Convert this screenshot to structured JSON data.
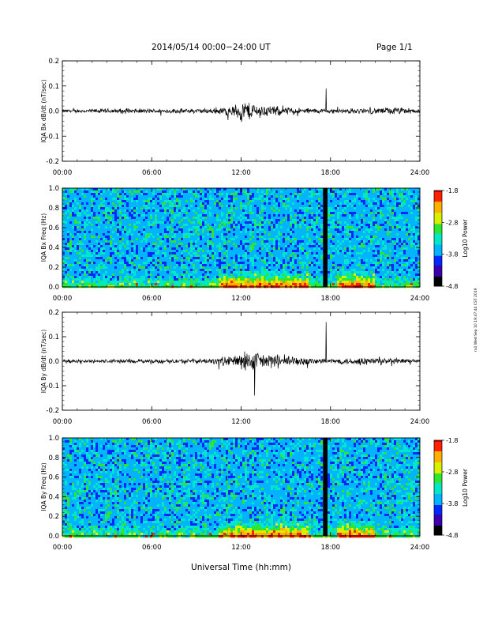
{
  "header": {
    "title": "2014/05/14  00:00−24:00 UT",
    "page": "Page 1/1"
  },
  "stamp": "ra1 Wed Sep 10 19:47:44 CST 2019",
  "colors": {
    "trace": "#000000",
    "colormap": [
      "#000000",
      "#3a00b0",
      "#0028ff",
      "#00b4ff",
      "#00e8c8",
      "#2ee62e",
      "#d8f000",
      "#ffb000",
      "#ff2000",
      "#c00000"
    ]
  },
  "chart_data": [
    {
      "type": "line",
      "panel": "bx-dbdt",
      "ylabel": "IQA Bx dB/dt (nT/sec)",
      "ylim": [
        -0.2,
        0.2
      ],
      "yticks": [
        "0.2",
        "0.1",
        "0.0",
        "-0.1",
        "-0.2"
      ],
      "xlim": [
        0,
        24
      ],
      "xticks": [
        "00:00",
        "06:00",
        "12:00",
        "18:00",
        "24:00"
      ],
      "noise_envelope": {
        "hours": [
          0,
          4,
          6,
          10,
          11.5,
          12,
          12.5,
          13,
          14,
          15,
          16,
          17,
          18,
          19,
          20,
          21,
          22,
          23,
          24
        ],
        "amp": [
          0.008,
          0.012,
          0.01,
          0.012,
          0.025,
          0.055,
          0.045,
          0.035,
          0.025,
          0.02,
          0.015,
          0.012,
          0.01,
          0.012,
          0.013,
          0.013,
          0.018,
          0.015,
          0.01
        ]
      },
      "spikes": [
        {
          "hour": 17.7,
          "value": 0.09
        }
      ]
    },
    {
      "type": "heatmap",
      "panel": "bx-spectrogram",
      "ylabel": "IQA Bx Freq (Hz)",
      "ylim": [
        0,
        1.0
      ],
      "yticks": [
        "1.0",
        "0.8",
        "0.6",
        "0.4",
        "0.2",
        "0.0"
      ],
      "xlim": [
        0,
        24
      ],
      "xticks": [
        "00:00",
        "06:00",
        "12:00",
        "18:00",
        "24:00"
      ],
      "colorbar": {
        "label": "Log10 Power",
        "range": [
          -4.8,
          -1.8
        ],
        "ticks": [
          "-1.8",
          "-2.8",
          "-3.8",
          "-4.8"
        ]
      },
      "gaps_hours": [
        [
          17.5,
          17.8
        ]
      ],
      "low_freq_enhancement_hours": [
        [
          10.5,
          16.5
        ],
        [
          18.5,
          21
        ]
      ]
    },
    {
      "type": "line",
      "panel": "by-dbdt",
      "ylabel": "IQA By dB/dt (nT/sec)",
      "ylim": [
        -0.2,
        0.2
      ],
      "yticks": [
        "0.2",
        "0.1",
        "0.0",
        "-0.1",
        "-0.2"
      ],
      "xlim": [
        0,
        24
      ],
      "xticks": [
        "00:00",
        "06:00",
        "12:00",
        "18:00",
        "24:00"
      ],
      "noise_envelope": {
        "hours": [
          0,
          4,
          6,
          10,
          11.5,
          12,
          12.5,
          13,
          14,
          15,
          16,
          17,
          18,
          19,
          20,
          21,
          22,
          23,
          24
        ],
        "amp": [
          0.008,
          0.01,
          0.009,
          0.012,
          0.03,
          0.04,
          0.05,
          0.045,
          0.035,
          0.03,
          0.02,
          0.015,
          0.012,
          0.015,
          0.018,
          0.02,
          0.015,
          0.012,
          0.01
        ]
      },
      "spikes": [
        {
          "hour": 17.7,
          "value": 0.16
        },
        {
          "hour": 12.9,
          "value": -0.14
        }
      ]
    },
    {
      "type": "heatmap",
      "panel": "by-spectrogram",
      "ylabel": "IQA By Freq (Hz)",
      "ylim": [
        0,
        1.0
      ],
      "yticks": [
        "1.0",
        "0.8",
        "0.6",
        "0.4",
        "0.2",
        "0.0"
      ],
      "xlim": [
        0,
        24
      ],
      "xticks": [
        "00:00",
        "06:00",
        "12:00",
        "18:00",
        "24:00"
      ],
      "xlabel": "Universal Time (hh:mm)",
      "colorbar": {
        "label": "Log10 Power",
        "range": [
          -4.8,
          -1.8
        ],
        "ticks": [
          "-1.8",
          "-2.8",
          "-3.8",
          "-4.8"
        ]
      },
      "gaps_hours": [
        [
          17.5,
          17.8
        ]
      ],
      "low_freq_enhancement_hours": [
        [
          10.5,
          16.5
        ],
        [
          18.5,
          21
        ]
      ]
    }
  ]
}
